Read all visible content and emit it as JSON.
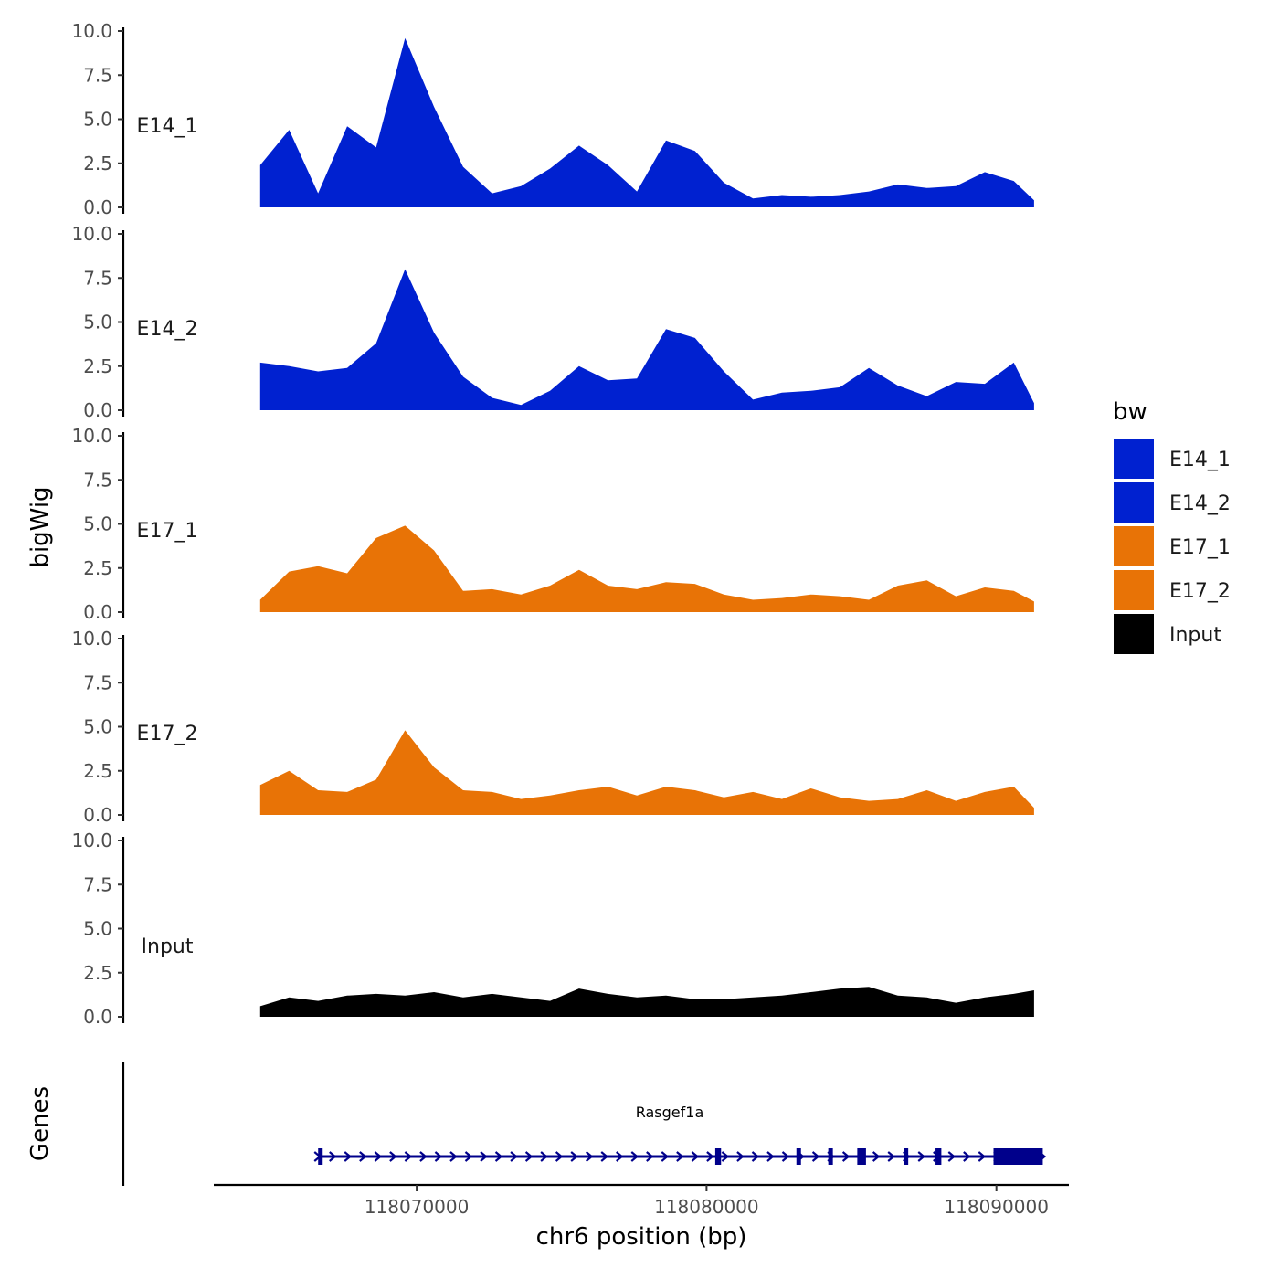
{
  "chart_data": {
    "type": "area",
    "ylabel": "bigWig",
    "xlabel": "chr6 position (bp)",
    "ylim": [
      0,
      10
    ],
    "yticks": [
      "0.0",
      "2.5",
      "5.0",
      "7.5",
      "10.0"
    ],
    "xlim": [
      118063000,
      118092500
    ],
    "xticks": [
      118070000,
      118080000,
      118090000
    ],
    "xtick_labels": [
      "118070000",
      "118080000",
      "118090000"
    ],
    "x": [
      118064600,
      118065600,
      118066600,
      118067600,
      118068600,
      118069600,
      118070600,
      118071600,
      118072600,
      118073600,
      118074600,
      118075600,
      118076600,
      118077600,
      118078600,
      118079600,
      118080600,
      118081600,
      118082600,
      118083600,
      118084600,
      118085600,
      118086600,
      118087600,
      118088600,
      118089600,
      118090600,
      118091300
    ],
    "tracks": [
      {
        "name": "E14_1",
        "color": "#0021D0",
        "values": [
          2.4,
          4.4,
          0.8,
          4.6,
          3.4,
          9.6,
          5.7,
          2.3,
          0.8,
          1.2,
          2.2,
          3.5,
          2.4,
          0.9,
          3.8,
          3.2,
          1.4,
          0.5,
          0.7,
          0.6,
          0.7,
          0.9,
          1.3,
          1.1,
          1.2,
          2.0,
          1.5,
          0.4
        ]
      },
      {
        "name": "E14_2",
        "color": "#0021D0",
        "values": [
          2.7,
          2.5,
          2.2,
          2.4,
          3.8,
          8.0,
          4.4,
          1.9,
          0.7,
          0.3,
          1.1,
          2.5,
          1.7,
          1.8,
          4.6,
          4.1,
          2.2,
          0.6,
          1.0,
          1.1,
          1.3,
          2.4,
          1.4,
          0.8,
          1.6,
          1.5,
          2.7,
          0.4
        ]
      },
      {
        "name": "E17_1",
        "color": "#E87306",
        "values": [
          0.7,
          2.3,
          2.6,
          2.2,
          4.2,
          4.9,
          3.5,
          1.2,
          1.3,
          1.0,
          1.5,
          2.4,
          1.5,
          1.3,
          1.7,
          1.6,
          1.0,
          0.7,
          0.8,
          1.0,
          0.9,
          0.7,
          1.5,
          1.8,
          0.9,
          1.4,
          1.2,
          0.6
        ]
      },
      {
        "name": "E17_2",
        "color": "#E87306",
        "values": [
          1.7,
          2.5,
          1.4,
          1.3,
          2.0,
          4.8,
          2.7,
          1.4,
          1.3,
          0.9,
          1.1,
          1.4,
          1.6,
          1.1,
          1.6,
          1.4,
          1.0,
          1.3,
          0.9,
          1.5,
          1.0,
          0.8,
          0.9,
          1.4,
          0.8,
          1.3,
          1.6,
          0.4
        ]
      },
      {
        "name": "Input",
        "color": "#000000",
        "values": [
          0.6,
          1.1,
          0.9,
          1.2,
          1.3,
          1.2,
          1.4,
          1.1,
          1.3,
          1.1,
          0.9,
          1.6,
          1.3,
          1.1,
          1.2,
          1.0,
          1.0,
          1.1,
          1.2,
          1.4,
          1.6,
          1.7,
          1.2,
          1.1,
          0.8,
          1.1,
          1.3,
          1.5
        ]
      }
    ],
    "legend": {
      "title": "bw",
      "position": "right",
      "items": [
        {
          "label": "E14_1",
          "color": "#0021D0"
        },
        {
          "label": "E14_2",
          "color": "#0021D0"
        },
        {
          "label": "E17_1",
          "color": "#E87306"
        },
        {
          "label": "E17_2",
          "color": "#E87306"
        },
        {
          "label": "Input",
          "color": "#000000"
        }
      ]
    },
    "genes_panel": {
      "title": "Genes",
      "gene": {
        "name": "Rasgef1a",
        "start": 118066600,
        "end": 118091600,
        "strand": "+",
        "color": "#00008B",
        "exons": [
          [
            118066600,
            118066700
          ],
          [
            118080300,
            118080500
          ],
          [
            118083100,
            118083200
          ],
          [
            118084200,
            118084300
          ],
          [
            118085200,
            118085500
          ],
          [
            118086800,
            118086900
          ],
          [
            118087900,
            118088100
          ],
          [
            118089900,
            118091600
          ]
        ]
      }
    }
  }
}
